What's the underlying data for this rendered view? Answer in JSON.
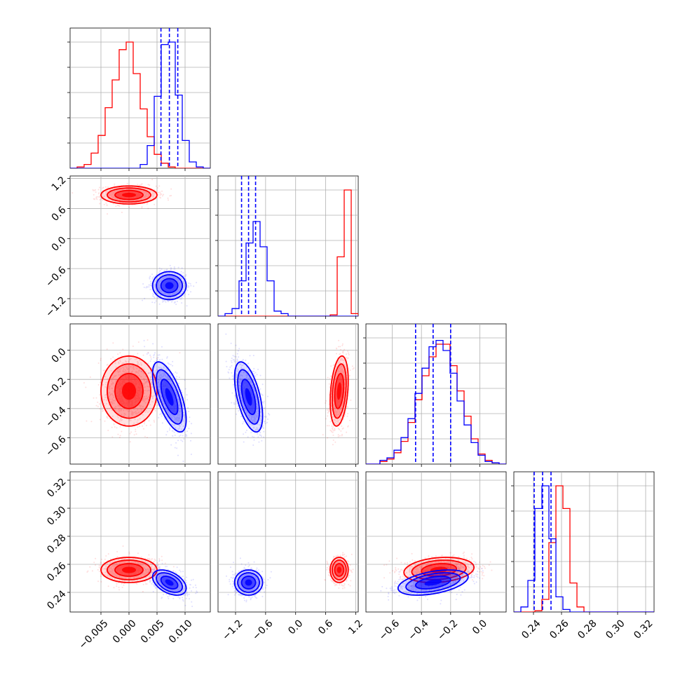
{
  "chart_data": {
    "type": "corner",
    "title": "",
    "grid": true,
    "colors": {
      "series_a": "#ff0000",
      "series_b": "#0000ff"
    },
    "parameters": [
      {
        "range": [
          -0.0105,
          0.0145
        ],
        "ticks": [
          "-0.005",
          "0.000",
          "0.005",
          "0.010"
        ],
        "tick_values": [
          -0.005,
          0.0,
          0.005,
          0.01
        ]
      },
      {
        "range": [
          -1.55,
          1.25
        ],
        "ticks": [
          "-1.2",
          "-0.6",
          "0.0",
          "0.6",
          "1.2"
        ],
        "tick_values": [
          -1.2,
          -0.6,
          0.0,
          0.6,
          1.2
        ]
      },
      {
        "range": [
          -0.78,
          0.18
        ],
        "ticks": [
          "-0.6",
          "-0.4",
          "-0.2",
          "0.0"
        ],
        "tick_values": [
          -0.6,
          -0.4,
          -0.2,
          0.0
        ]
      },
      {
        "range": [
          0.226,
          0.326
        ],
        "ticks": [
          "0.24",
          "0.26",
          "0.28",
          "0.30",
          "0.32"
        ],
        "tick_values": [
          0.24,
          0.26,
          0.28,
          0.3,
          0.32
        ]
      }
    ],
    "series": [
      {
        "color": "#ff0000",
        "means": [
          0.0,
          0.87,
          -0.28,
          0.256
        ],
        "sigmas": [
          0.0025,
          0.09,
          0.12,
          0.0045
        ],
        "correlations": [
          [
            0,
            1,
            0.0
          ],
          [
            0,
            2,
            0.0
          ],
          [
            0,
            3,
            0.0
          ],
          [
            1,
            2,
            0.3
          ],
          [
            1,
            3,
            0.0
          ],
          [
            2,
            3,
            0.2
          ]
        ]
      },
      {
        "color": "#0000ff",
        "means": [
          0.0072,
          -0.94,
          -0.32,
          0.247
        ],
        "sigmas": [
          0.0015,
          0.14,
          0.12,
          0.0045
        ],
        "correlations": [
          [
            0,
            1,
            0.0
          ],
          [
            0,
            2,
            -0.65
          ],
          [
            0,
            3,
            -0.45
          ],
          [
            1,
            2,
            -0.55
          ],
          [
            1,
            3,
            0.0
          ],
          [
            2,
            3,
            0.45
          ]
        ]
      }
    ],
    "quantile_lines": {
      "color": "#0000ff",
      "values": [
        [
          0.0057,
          0.0072,
          0.0087
        ],
        [
          -1.08,
          -0.94,
          -0.8
        ],
        [
          -0.44,
          -0.32,
          -0.2
        ],
        [
          0.2405,
          0.2465,
          0.2525
        ]
      ]
    },
    "histograms": [
      {
        "bins": 20,
        "range": [
          -0.0105,
          0.0145
        ],
        "red": [
          0.0,
          0.01,
          0.03,
          0.12,
          0.26,
          0.48,
          0.7,
          0.94,
          1.0,
          0.75,
          0.47,
          0.25,
          0.11,
          0.04,
          0.01,
          0.0,
          0.0,
          0.0,
          0.0,
          0.0
        ],
        "blue": [
          0.0,
          0.0,
          0.0,
          0.0,
          0.0,
          0.0,
          0.0,
          0.0,
          0.0,
          0.0,
          0.03,
          0.18,
          0.57,
          0.98,
          1.0,
          0.58,
          0.22,
          0.05,
          0.01,
          0.0
        ]
      },
      {
        "bins": 20,
        "range": [
          -1.55,
          1.25
        ],
        "red": [
          0.0,
          0.0,
          0.0,
          0.0,
          0.0,
          0.0,
          0.0,
          0.0,
          0.0,
          0.0,
          0.0,
          0.0,
          0.0,
          0.0,
          0.0,
          0.0,
          0.01,
          0.47,
          1.0,
          0.02
        ],
        "blue": [
          0.0,
          0.02,
          0.06,
          0.28,
          0.58,
          0.75,
          0.55,
          0.28,
          0.04,
          0.02,
          0.0,
          0.0,
          0.0,
          0.0,
          0.0,
          0.0,
          0.0,
          0.0,
          0.0,
          0.0
        ]
      },
      {
        "bins": 20,
        "range": [
          -0.78,
          0.18
        ],
        "red": [
          0.0,
          0.0,
          0.02,
          0.04,
          0.09,
          0.18,
          0.33,
          0.51,
          0.7,
          0.85,
          0.95,
          0.95,
          0.78,
          0.58,
          0.38,
          0.2,
          0.08,
          0.03,
          0.01,
          0.0
        ],
        "blue": [
          0.0,
          0.0,
          0.03,
          0.05,
          0.11,
          0.21,
          0.36,
          0.56,
          0.76,
          0.93,
          0.98,
          0.9,
          0.72,
          0.5,
          0.31,
          0.17,
          0.07,
          0.02,
          0.01,
          0.0
        ]
      },
      {
        "bins": 20,
        "range": [
          0.226,
          0.326
        ],
        "red": [
          0.0,
          0.0,
          0.0,
          0.01,
          0.1,
          0.55,
          1.0,
          0.82,
          0.23,
          0.04,
          0.0,
          0.0,
          0.0,
          0.0,
          0.0,
          0.0,
          0.0,
          0.0,
          0.0,
          0.0
        ],
        "blue": [
          0.0,
          0.04,
          0.25,
          0.82,
          1.0,
          0.58,
          0.12,
          0.02,
          0.0,
          0.0,
          0.0,
          0.0,
          0.0,
          0.0,
          0.0,
          0.0,
          0.0,
          0.0,
          0.0,
          0.0
        ]
      }
    ]
  }
}
